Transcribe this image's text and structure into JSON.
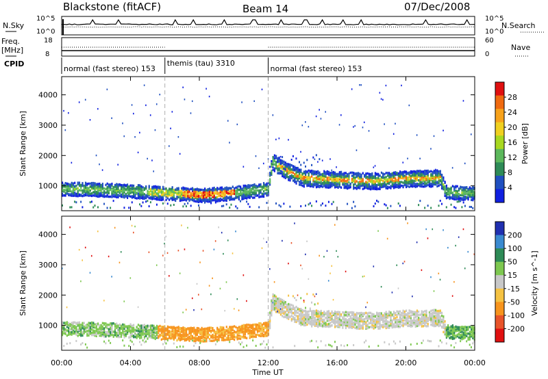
{
  "header": {
    "station": "Blackstone (fitACF)",
    "beam": "Beam 14",
    "date": "07/Dec/2008"
  },
  "top_panels": {
    "nsky_label": "N.Sky",
    "nsky_ticks": [
      "10^5",
      "10^0"
    ],
    "nsearch_label": "N.Search",
    "nsearch_ticks": [
      "10^5",
      "10^0"
    ],
    "freq_label": "Freq.",
    "freq_unit": "[MHz]",
    "freq_ticks": [
      "18",
      "8"
    ],
    "nave_label": "Nave",
    "nave_ticks": [
      "60",
      "0"
    ],
    "cpid_label": "CPID"
  },
  "chart_data": [
    {
      "type": "scatter",
      "title": "",
      "panel": "power",
      "xlabel": "Time UT",
      "ylabel": "Slant Range [km]",
      "x_ticks": [
        "00:00",
        "04:00",
        "08:00",
        "12:00",
        "16:00",
        "20:00",
        "00:00"
      ],
      "xlim_hours": [
        0,
        24
      ],
      "y_ticks": [
        "1000",
        "2000",
        "3000",
        "4000"
      ],
      "ylim_km": [
        180,
        4600
      ],
      "colorbar": {
        "label": "Power [dB]",
        "ticks": [
          "4",
          "8",
          "12",
          "16",
          "20",
          "24",
          "28"
        ],
        "range": [
          0,
          32
        ]
      },
      "modes": [
        {
          "label": "normal (fast stereo) 153",
          "start_h": 0,
          "end_h": 6
        },
        {
          "label": "themis (tau) 3310",
          "start_h": 6,
          "end_h": 12
        },
        {
          "label": "normal (fast stereo) 153",
          "start_h": 12,
          "end_h": 24
        }
      ],
      "band_profile": [
        {
          "t": 0,
          "r": 900
        },
        {
          "t": 2,
          "r": 880
        },
        {
          "t": 4,
          "r": 830
        },
        {
          "t": 6,
          "r": 760
        },
        {
          "t": 8,
          "r": 700
        },
        {
          "t": 10,
          "r": 760
        },
        {
          "t": 12,
          "r": 900
        },
        {
          "t": 12.2,
          "r": 1800
        },
        {
          "t": 13,
          "r": 1500
        },
        {
          "t": 14,
          "r": 1250
        },
        {
          "t": 16,
          "r": 1200
        },
        {
          "t": 18,
          "r": 1150
        },
        {
          "t": 20,
          "r": 1230
        },
        {
          "t": 22,
          "r": 1250
        },
        {
          "t": 22.3,
          "r": 800
        },
        {
          "t": 24,
          "r": 750
        }
      ]
    },
    {
      "type": "scatter",
      "title": "",
      "panel": "velocity",
      "xlabel": "Time UT",
      "ylabel": "Slant Range [km]",
      "x_ticks": [
        "00:00",
        "04:00",
        "08:00",
        "12:00",
        "16:00",
        "20:00",
        "00:00"
      ],
      "xlim_hours": [
        0,
        24
      ],
      "y_ticks": [
        "1000",
        "2000",
        "3000",
        "4000"
      ],
      "ylim_km": [
        180,
        4600
      ],
      "colorbar": {
        "label": "Velocity [m s^-1]",
        "ticks": [
          "200",
          "100",
          "50",
          "15",
          "-15",
          "-50",
          "-100",
          "-200"
        ],
        "colors": [
          "#2030b0",
          "#3a8ad0",
          "#2e8b57",
          "#7ec850",
          "#c8c8c8",
          "#f5c242",
          "#f7941d",
          "#e8542a",
          "#e01010"
        ]
      }
    }
  ]
}
